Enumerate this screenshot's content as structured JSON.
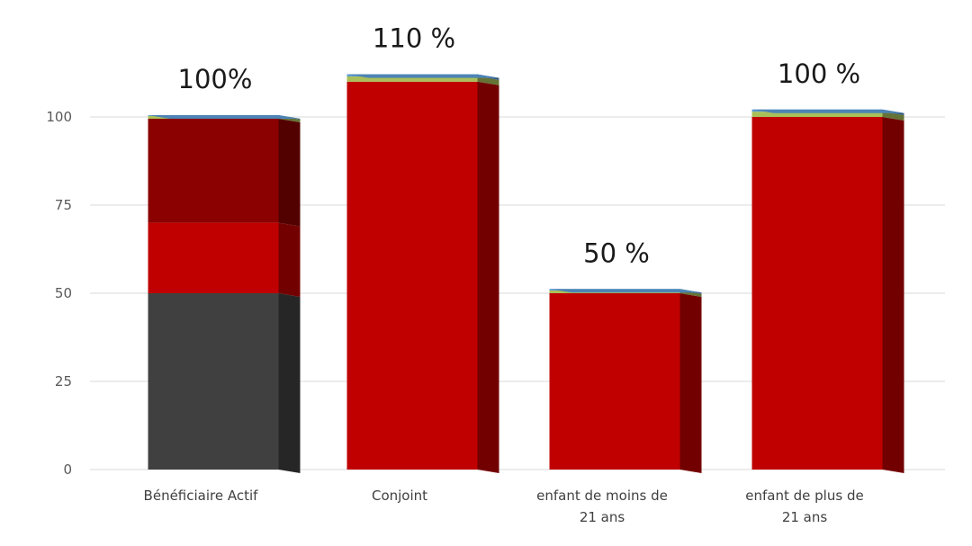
{
  "chart_data": {
    "type": "bar",
    "stacked": true,
    "three_d": true,
    "categories": [
      [
        "Bénéficiaire Actif"
      ],
      [
        "Conjoint"
      ],
      [
        "enfant de moins de",
        "21 ans"
      ],
      [
        "enfant de plus de",
        "21 ans"
      ]
    ],
    "series": [
      {
        "color": "#404040",
        "values": [
          50,
          0,
          0,
          0
        ]
      },
      {
        "color": "#c00000",
        "values": [
          20,
          110,
          50,
          100
        ]
      },
      {
        "color": "#8b0000",
        "values": [
          29.5,
          0,
          0,
          0
        ]
      },
      {
        "color": "#a9c05a",
        "values": [
          0.8,
          1.5,
          0.8,
          1.5
        ]
      },
      {
        "color": "#5b9bd5",
        "values": [
          0.2,
          0.6,
          0.4,
          0.6
        ]
      }
    ],
    "data_labels": [
      "100%",
      "110 %",
      "50 %",
      "100 %"
    ],
    "yticks": [
      0,
      25,
      50,
      75,
      100
    ],
    "ylim": [
      0,
      115
    ],
    "grid": true,
    "legend": "none"
  }
}
